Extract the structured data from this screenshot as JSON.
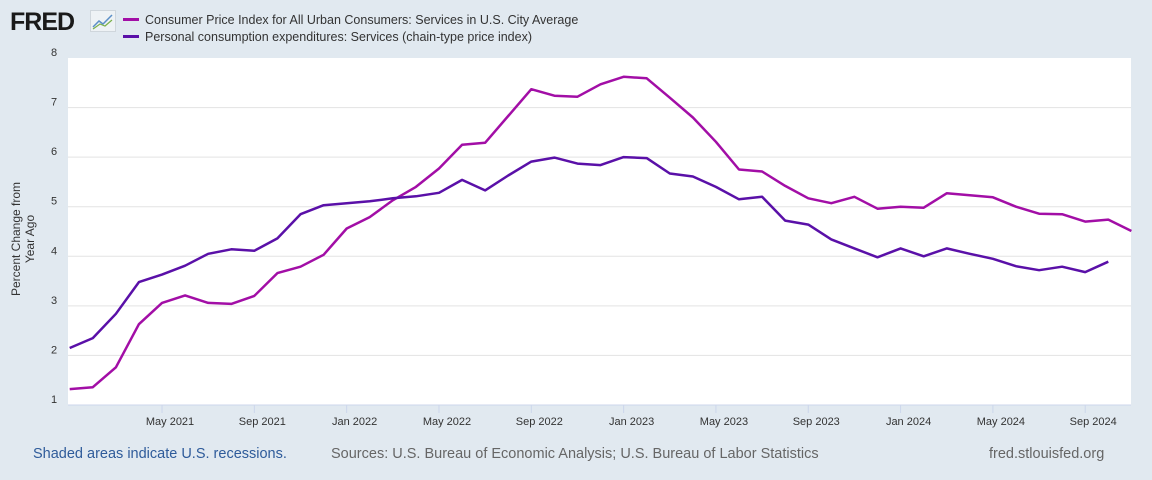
{
  "header": {
    "logo": "FRED",
    "logo_icon": "chart-line-icon"
  },
  "chart_data": {
    "type": "line",
    "title": "",
    "ylabel": "Percent Change from Year Ago",
    "xlabel": "",
    "ylim": [
      1,
      8
    ],
    "yticks": [
      "1",
      "2",
      "3",
      "4",
      "5",
      "6",
      "7",
      "8"
    ],
    "xtick_labels": [
      "May 2021",
      "Sep 2021",
      "Jan 2022",
      "May 2022",
      "Sep 2022",
      "Jan 2023",
      "May 2023",
      "Sep 2023",
      "Jan 2024",
      "May 2024",
      "Sep 2024"
    ],
    "xtick_month_index": [
      4,
      8,
      12,
      16,
      20,
      24,
      28,
      32,
      36,
      40,
      44
    ],
    "x_start": "Jan 2021",
    "x_end": "Nov 2024",
    "grid": true,
    "legend_placement": "top-left",
    "series": [
      {
        "name": "Consumer Price Index for All Urban Consumers: Services in U.S. City Average",
        "color": "#a20ea6",
        "values": [
          1.32,
          1.36,
          1.76,
          2.63,
          3.06,
          3.21,
          3.06,
          3.04,
          3.2,
          3.66,
          3.79,
          4.03,
          4.56,
          4.79,
          5.13,
          5.4,
          5.77,
          6.25,
          6.29,
          6.83,
          7.37,
          7.24,
          7.22,
          7.47,
          7.62,
          7.59,
          7.2,
          6.8,
          6.31,
          5.75,
          5.71,
          5.42,
          5.17,
          5.07,
          5.2,
          4.96,
          5.0,
          4.98,
          5.27,
          5.23,
          5.19,
          5.0,
          4.86,
          4.85,
          4.7,
          4.74,
          4.51
        ]
      },
      {
        "name": "Personal consumption expenditures: Services (chain-type price index)",
        "color": "#5a10a8",
        "values": [
          2.15,
          2.35,
          2.84,
          3.48,
          3.63,
          3.81,
          4.05,
          4.14,
          4.11,
          4.36,
          4.85,
          5.03,
          5.07,
          5.11,
          5.17,
          5.21,
          5.28,
          5.54,
          5.33,
          5.63,
          5.91,
          5.99,
          5.87,
          5.84,
          6.0,
          5.98,
          5.67,
          5.61,
          5.4,
          5.15,
          5.2,
          4.72,
          4.64,
          4.34,
          4.16,
          3.98,
          4.16,
          4.0,
          4.16,
          4.05,
          3.95,
          3.8,
          3.72,
          3.79,
          3.68,
          3.89
        ]
      }
    ]
  },
  "footer": {
    "recessions": "Shaded areas indicate U.S. recessions.",
    "sources": "Sources: U.S. Bureau of Economic Analysis; U.S. Bureau of Labor Statistics",
    "site": "fred.stlouisfed.org"
  }
}
